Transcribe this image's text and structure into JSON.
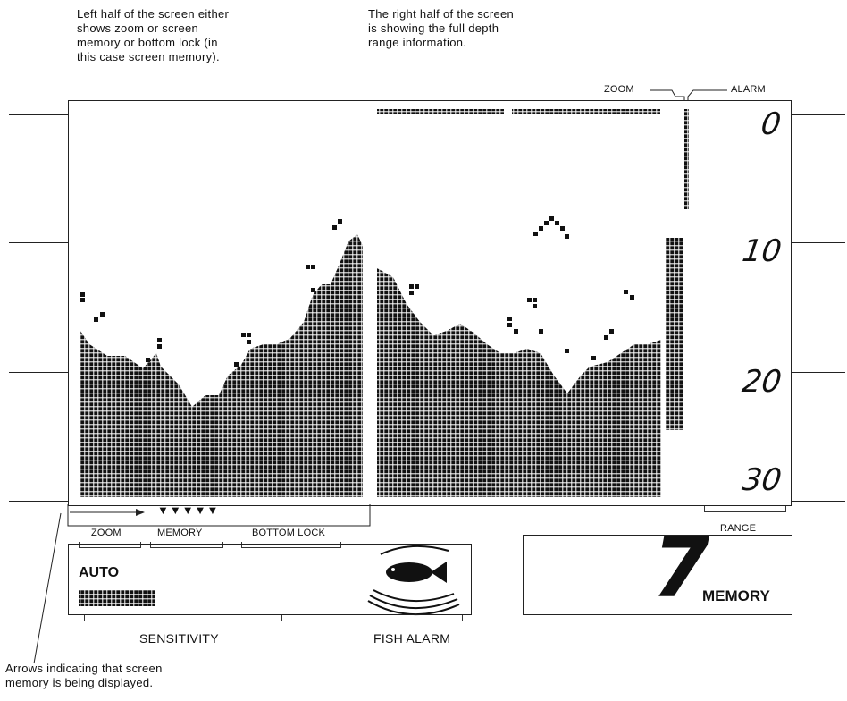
{
  "notes": {
    "left_half": "Left half of the screen either\nshows zoom or screen\nmemory or bottom lock (in\nthis case screen memory).",
    "right_half": "The right half of the screen\nis showing the full depth\nrange information.",
    "arrows": "Arrows indicating that screen\nmemory is being displayed."
  },
  "top_labels": {
    "zoom": "ZOOM",
    "alarm": "ALARM"
  },
  "depth_scale": [
    "0",
    "10",
    "20",
    "30"
  ],
  "mode_labels": {
    "zoom": "ZOOM",
    "memory": "MEMORY",
    "bottom_lock": "BOTTOM LOCK"
  },
  "memory_arrows": "▼▼▼▼▼",
  "sensitivity": {
    "mode": "AUTO",
    "caption": "SENSITIVITY"
  },
  "fish_alarm": {
    "caption": "FISH ALARM"
  },
  "range": {
    "caption": "RANGE"
  },
  "memory_display": {
    "number": "7",
    "label": "MEMORY"
  }
}
